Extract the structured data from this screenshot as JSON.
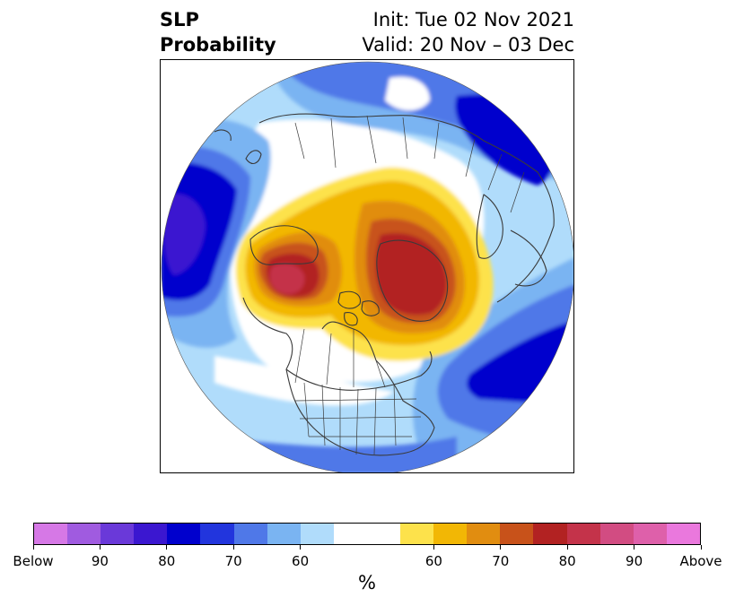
{
  "title": {
    "left_line1": "SLP",
    "left_line2": "Probability",
    "right_line1": "Init: Tue 02 Nov 2021",
    "right_line2": "Valid: 20 Nov – 03 Dec"
  },
  "map": {
    "projection": "north-polar-stereographic",
    "features": [
      "continents",
      "country-borders",
      "us-state-borders",
      "coastlines"
    ],
    "anomalies": [
      {
        "name": "below-normal-north-pacific",
        "category": "Below",
        "max_prob": "90"
      },
      {
        "name": "above-normal-alaska-yukon",
        "category": "Above",
        "max_prob": "90"
      },
      {
        "name": "above-normal-arctic-canada-greenland",
        "category": "Above",
        "max_prob": "80"
      },
      {
        "name": "below-normal-north-atlantic",
        "category": "Below",
        "max_prob": "80"
      },
      {
        "name": "below-normal-siberia-europe",
        "category": "Below",
        "max_prob": "70"
      }
    ]
  },
  "colorbar": {
    "colors": [
      "#d678e6",
      "#a05be0",
      "#6a39d9",
      "#3b17d0",
      "#0000cd",
      "#2235dd",
      "#4f78e8",
      "#7ab4f2",
      "#b0dcfb",
      "#ffffff",
      "#ffffff",
      "#fde24b",
      "#f2b705",
      "#e18d10",
      "#c8521a",
      "#b22222",
      "#c4334a",
      "#d24c82",
      "#de60aa",
      "#ea78dd"
    ],
    "tick_labels": [
      "Below",
      "90",
      "80",
      "70",
      "60",
      "60",
      "70",
      "80",
      "90",
      "Above"
    ],
    "unit": "%"
  }
}
